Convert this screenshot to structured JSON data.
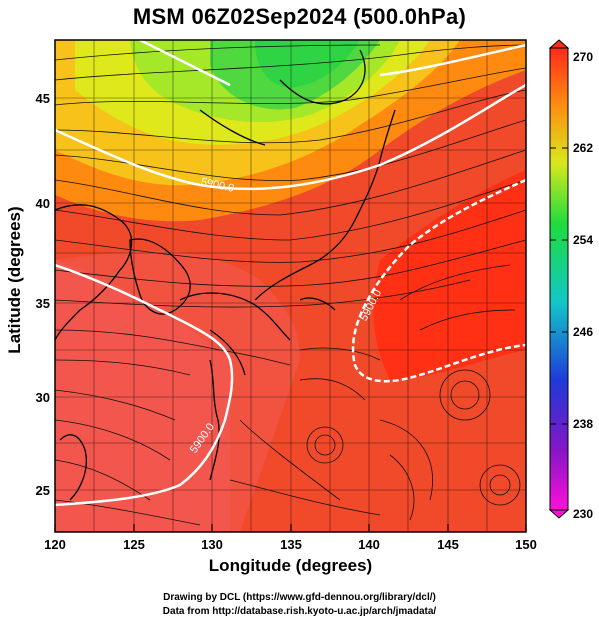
{
  "title": "MSM 06Z02Sep2024 (500.0hPa)",
  "xlabel": "Longitude (degrees)",
  "ylabel": "Latitude  (degrees)",
  "x_ticks": [
    "120",
    "125",
    "130",
    "135",
    "140",
    "145",
    "150"
  ],
  "y_ticks": [
    "25",
    "30",
    "35",
    "40",
    "45"
  ],
  "colorbar_ticks": [
    "270",
    "262",
    "254",
    "246",
    "238",
    "230"
  ],
  "contour_labels": [
    "5900.0",
    "5900.0",
    "5900.0"
  ],
  "credits": {
    "line1": "Drawing by DCL (https://www.gfd-dennou.org/library/dcl/)",
    "line2": "Data from http://database.rish.kyoto-u.ac.jp/arch/jmadata/"
  },
  "map": {
    "projection": "lon-lat",
    "lon_range": [
      120,
      150
    ],
    "lat_range": [
      22.4,
      47.6
    ],
    "variable": "temperature (K) with wind streamlines and geopotential height contours",
    "colorscale_range": [
      230,
      270
    ],
    "colors": {
      "warm": "#ff3b1a",
      "hot": "#f2504a",
      "orange": "#ff8a10",
      "yellow": "#dfe81b",
      "green": "#39d845",
      "contour": "#ffffff",
      "coast": "#000000"
    }
  }
}
